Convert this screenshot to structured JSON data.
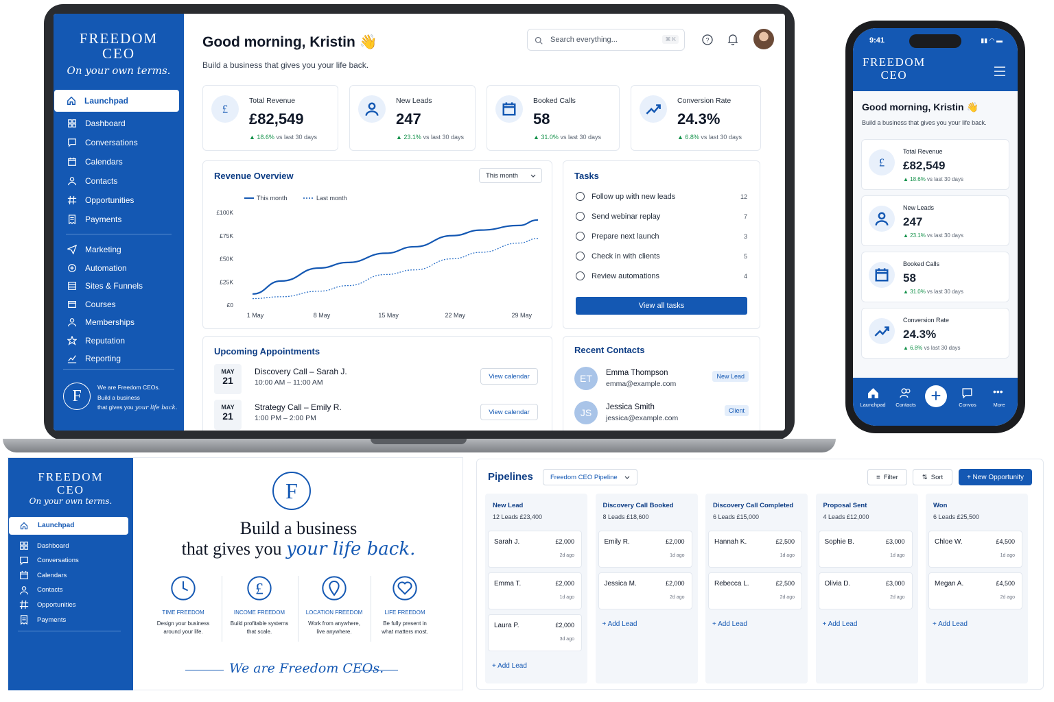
{
  "brand": {
    "line1": "FREEDOM",
    "line2": "CEO",
    "tagline": "On your own terms."
  },
  "colors": {
    "primary": "#1458b3",
    "dark": "#0d3d85",
    "positive": "#15924b"
  },
  "header": {
    "greeting": "Good morning, Kristin",
    "wave": "👋",
    "subtitle": "Build a business that gives you your life back.",
    "search_placeholder": "Search everything...",
    "shortcut": "⌘ K"
  },
  "sidebar": {
    "launchpad": "Launchpad",
    "items": [
      {
        "label": "Dashboard",
        "icon": "dashboard-icon"
      },
      {
        "label": "Conversations",
        "icon": "chat-icon"
      },
      {
        "label": "Calendars",
        "icon": "calendar-icon"
      },
      {
        "label": "Contacts",
        "icon": "contacts-icon"
      },
      {
        "label": "Opportunities",
        "icon": "hash-icon"
      },
      {
        "label": "Payments",
        "icon": "receipt-icon"
      }
    ],
    "items2": [
      {
        "label": "Marketing",
        "icon": "send-icon"
      },
      {
        "label": "Automation",
        "icon": "automation-icon"
      },
      {
        "label": "Sites & Funnels",
        "icon": "sites-icon"
      },
      {
        "label": "Courses",
        "icon": "courses-icon"
      },
      {
        "label": "Memberships",
        "icon": "member-icon"
      },
      {
        "label": "Reputation",
        "icon": "star-icon"
      },
      {
        "label": "Reporting",
        "icon": "chart-icon"
      }
    ],
    "footer1": "We are Freedom CEOs.",
    "footer2": "Build a business",
    "footer3": "that gives you",
    "footer4": "your life back."
  },
  "stats": [
    {
      "label": "Total Revenue",
      "value": "£82,549",
      "delta": "18.6%",
      "note": "vs last 30 days",
      "icon": "pound-icon"
    },
    {
      "label": "New Leads",
      "value": "247",
      "delta": "23.1%",
      "note": "vs last 30 days",
      "icon": "user-icon"
    },
    {
      "label": "Booked Calls",
      "value": "58",
      "delta": "31.0%",
      "note": "vs last 30 days",
      "icon": "calendar-icon"
    },
    {
      "label": "Conversion Rate",
      "value": "24.3%",
      "delta": "6.8%",
      "note": "vs last 30 days",
      "icon": "trend-icon"
    }
  ],
  "revenue": {
    "title": "Revenue Overview",
    "range": "This month",
    "legend_this": "This month",
    "legend_last": "Last month"
  },
  "chart_data": {
    "type": "line",
    "title": "Revenue Overview",
    "yticks": [
      "£100K",
      "£75K",
      "£50K",
      "£25K",
      "£0"
    ],
    "ylim": [
      0,
      100000
    ],
    "xticks": [
      "1 May",
      "8 May",
      "15 May",
      "22 May",
      "29 May"
    ],
    "x": [
      1,
      4,
      8,
      11,
      15,
      18,
      22,
      25,
      29,
      31
    ],
    "series": [
      {
        "name": "This month",
        "values": [
          12000,
          26000,
          40000,
          46000,
          56000,
          63000,
          75000,
          81000,
          86000,
          92000
        ]
      },
      {
        "name": "Last month",
        "values": [
          7000,
          9000,
          15000,
          21000,
          33000,
          38000,
          50000,
          57000,
          67000,
          72000
        ]
      }
    ],
    "grid": false,
    "legend": "top-left"
  },
  "tasks": {
    "title": "Tasks",
    "button": "View all tasks",
    "items": [
      {
        "label": "Follow up with new leads",
        "count": "12"
      },
      {
        "label": "Send webinar replay",
        "count": "7"
      },
      {
        "label": "Prepare next launch",
        "count": "3"
      },
      {
        "label": "Check in with clients",
        "count": "5"
      },
      {
        "label": "Review automations",
        "count": "4"
      }
    ]
  },
  "appointments": {
    "title": "Upcoming Appointments",
    "button": "View calendar",
    "items": [
      {
        "month": "MAY",
        "day": "21",
        "name": "Discovery Call – Sarah J.",
        "time": "10:00 AM – 11:00 AM"
      },
      {
        "month": "MAY",
        "day": "21",
        "name": "Strategy Call – Emily R.",
        "time": "1:00 PM – 2:00 PM"
      }
    ]
  },
  "contacts": {
    "title": "Recent Contacts",
    "items": [
      {
        "initials": "ET",
        "name": "Emma Thompson",
        "email": "emma@example.com",
        "tag": "New Lead"
      },
      {
        "initials": "JS",
        "name": "Jessica Smith",
        "email": "jessica@example.com",
        "tag": "Client"
      }
    ]
  },
  "phone": {
    "time": "9:41",
    "bottom_nav": [
      "Launchpad",
      "Contacts",
      "Convos",
      "More"
    ]
  },
  "landing": {
    "headline1": "Build a business",
    "headline2": "that gives you",
    "headline_script": "your life back.",
    "footer_script": "We are Freedom CEOs.",
    "pillars": [
      {
        "title": "TIME FREEDOM",
        "l1": "Design your business",
        "l2": "around your life."
      },
      {
        "title": "INCOME FREEDOM",
        "l1": "Build profitable systems",
        "l2": "that scale."
      },
      {
        "title": "LOCATION FREEDOM",
        "l1": "Work from anywhere,",
        "l2": "live anywhere."
      },
      {
        "title": "LIFE FREEDOM",
        "l1": "Be fully present in",
        "l2": "what matters most."
      }
    ]
  },
  "pipelines": {
    "title": "Pipelines",
    "pipeline": "Freedom CEO Pipeline",
    "filter": "Filter",
    "sort": "Sort",
    "new_opp": "+ New Opportunity",
    "add_lead": "+ Add Lead",
    "stages": [
      {
        "name": "New Lead",
        "count": "12 Leads",
        "total": "£23,400",
        "leads": [
          {
            "name": "Sarah J.",
            "amount": "£2,000",
            "ago": "2d ago"
          },
          {
            "name": "Emma T.",
            "amount": "£2,000",
            "ago": "1d ago"
          },
          {
            "name": "Laura P.",
            "amount": "£2,000",
            "ago": "3d ago"
          }
        ]
      },
      {
        "name": "Discovery Call Booked",
        "count": "8 Leads",
        "total": "£18,600",
        "leads": [
          {
            "name": "Emily R.",
            "amount": "£2,000",
            "ago": "1d ago"
          },
          {
            "name": "Jessica M.",
            "amount": "£2,000",
            "ago": "2d ago"
          }
        ]
      },
      {
        "name": "Discovery Call Completed",
        "count": "6 Leads",
        "total": "£15,000",
        "leads": [
          {
            "name": "Hannah K.",
            "amount": "£2,500",
            "ago": "1d ago"
          },
          {
            "name": "Rebecca L.",
            "amount": "£2,500",
            "ago": "2d ago"
          }
        ]
      },
      {
        "name": "Proposal Sent",
        "count": "4 Leads",
        "total": "£12,000",
        "leads": [
          {
            "name": "Sophie B.",
            "amount": "£3,000",
            "ago": "1d ago"
          },
          {
            "name": "Olivia D.",
            "amount": "£3,000",
            "ago": "2d ago"
          }
        ]
      },
      {
        "name": "Won",
        "count": "6 Leads",
        "total": "£25,500",
        "leads": [
          {
            "name": "Chloe W.",
            "amount": "£4,500",
            "ago": "1d ago"
          },
          {
            "name": "Megan A.",
            "amount": "£4,500",
            "ago": "2d ago"
          }
        ]
      }
    ]
  }
}
